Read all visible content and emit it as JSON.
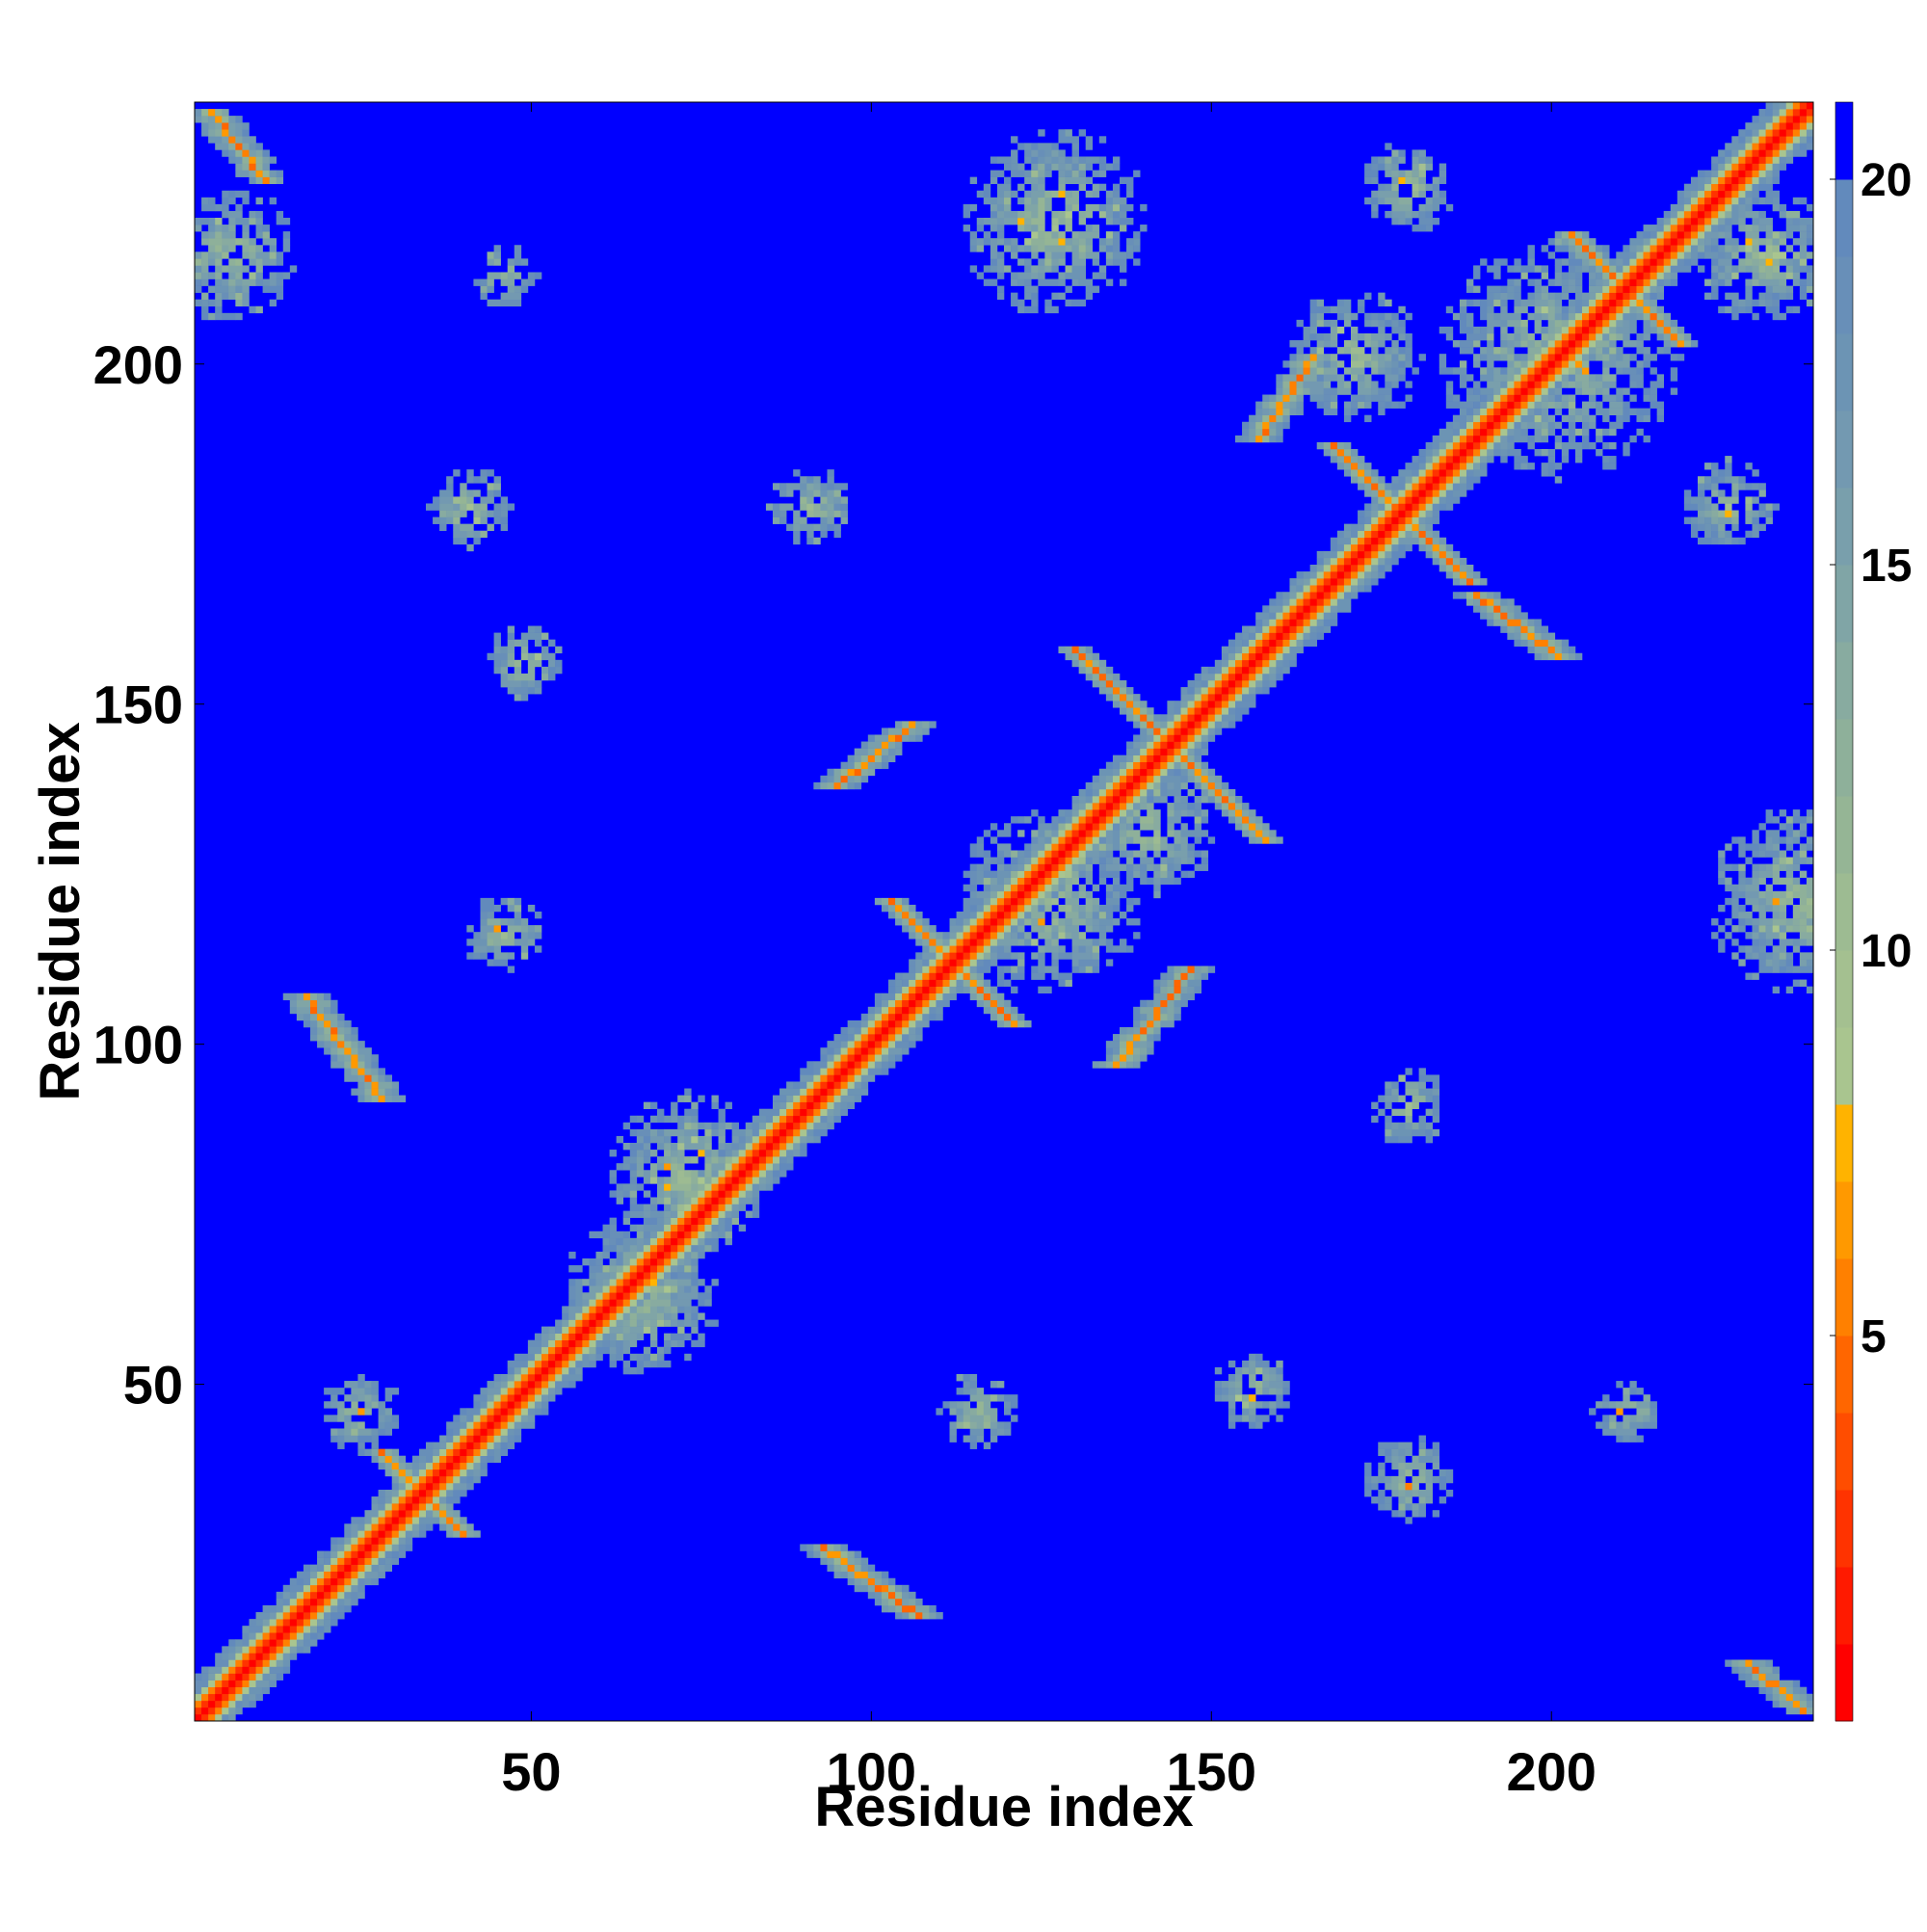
{
  "chart_data": {
    "type": "heatmap",
    "title": "",
    "xlabel": "Residue index",
    "ylabel": "Residue index",
    "n_residues": 238,
    "xlim": [
      1,
      238
    ],
    "ylim": [
      1,
      238
    ],
    "x_ticks": [
      50,
      100,
      150,
      200
    ],
    "y_ticks": [
      50,
      100,
      150,
      200
    ],
    "colorbar": {
      "range": [
        0,
        21
      ],
      "ticks": [
        5,
        10,
        15,
        20
      ],
      "levels": [
        {
          "max": 1,
          "color": "#ff0000"
        },
        {
          "max": 2,
          "color": "#ff1a00"
        },
        {
          "max": 3,
          "color": "#ff3300"
        },
        {
          "max": 4,
          "color": "#ff4d00"
        },
        {
          "max": 5,
          "color": "#ff6600"
        },
        {
          "max": 6,
          "color": "#ff8000"
        },
        {
          "max": 7,
          "color": "#ff9900"
        },
        {
          "max": 8,
          "color": "#ffb300"
        },
        {
          "max": 9,
          "color": "#a9c58f"
        },
        {
          "max": 10,
          "color": "#a4c090"
        },
        {
          "max": 11,
          "color": "#9dbb92"
        },
        {
          "max": 12,
          "color": "#95b595"
        },
        {
          "max": 13,
          "color": "#8eb09a"
        },
        {
          "max": 14,
          "color": "#88aba0"
        },
        {
          "max": 15,
          "color": "#80a5a6"
        },
        {
          "max": 16,
          "color": "#799fac"
        },
        {
          "max": 17,
          "color": "#7399b1"
        },
        {
          "max": 18,
          "color": "#6c94b4"
        },
        {
          "max": 19,
          "color": "#688fb8"
        },
        {
          "max": 20,
          "color": "#628abc"
        },
        {
          "max": 21,
          "color": "#0000ff"
        }
      ]
    },
    "background_value": 21,
    "contact_features": [
      {
        "kind": "diagonal_band",
        "from": 1,
        "to": 238
      },
      {
        "kind": "antiparallel",
        "center": [
          111,
          111
        ],
        "length": 9
      },
      {
        "kind": "antiparallel",
        "center": [
          143,
          143
        ],
        "length": 14
      },
      {
        "kind": "antiparallel",
        "center": [
          177,
          177
        ],
        "length": 10
      },
      {
        "kind": "antiparallel",
        "center": [
          210,
          210
        ],
        "length": 8
      },
      {
        "kind": "antiparallel",
        "center": [
          33,
          33
        ],
        "length": 6
      },
      {
        "kind": "strand_pair",
        "from": [
          92,
          25
        ],
        "to": [
          106,
          15
        ]
      },
      {
        "kind": "strand_pair",
        "from": [
          16,
          106
        ],
        "to": [
          27,
          91
        ]
      },
      {
        "kind": "strand_pair",
        "from": [
          135,
          96
        ],
        "to": [
          146,
          110
        ]
      },
      {
        "kind": "strand_pair",
        "from": [
          94,
          137
        ],
        "to": [
          105,
          146
        ]
      },
      {
        "kind": "strand_pair",
        "from": [
          2,
          236
        ],
        "to": [
          10,
          226
        ]
      },
      {
        "kind": "strand_pair",
        "from": [
          228,
          8
        ],
        "to": [
          236,
          1
        ]
      },
      {
        "kind": "strand_pair",
        "from": [
          188,
          165
        ],
        "to": [
          200,
          156
        ]
      },
      {
        "kind": "strand_pair",
        "from": [
          156,
          188
        ],
        "to": [
          164,
          200
        ]
      },
      {
        "kind": "patch",
        "center": [
          126,
          220
        ],
        "radius": 14
      },
      {
        "kind": "patch",
        "center": [
          236,
          120
        ],
        "radius": 14
      },
      {
        "kind": "patch",
        "center": [
          225,
          178
        ],
        "radius": 7
      },
      {
        "kind": "patch",
        "center": [
          178,
          225
        ],
        "radius": 7
      },
      {
        "kind": "patch",
        "center": [
          40,
          178
        ],
        "radius": 6
      },
      {
        "kind": "patch",
        "center": [
          90,
          178
        ],
        "radius": 6
      },
      {
        "kind": "patch",
        "center": [
          178,
          90
        ],
        "radius": 6
      },
      {
        "kind": "patch",
        "center": [
          178,
          35
        ],
        "radius": 7
      },
      {
        "kind": "patch",
        "center": [
          155,
          48
        ],
        "radius": 6
      },
      {
        "kind": "patch",
        "center": [
          48,
          155
        ],
        "radius": 6
      },
      {
        "kind": "patch",
        "center": [
          45,
          212
        ],
        "radius": 5
      },
      {
        "kind": "patch",
        "center": [
          24,
          45
        ],
        "radius": 6
      },
      {
        "kind": "patch",
        "center": [
          210,
          45
        ],
        "radius": 5
      },
      {
        "kind": "patch",
        "center": [
          115,
          45
        ],
        "radius": 6
      },
      {
        "kind": "patch",
        "center": [
          45,
          115
        ],
        "radius": 6
      },
      {
        "kind": "patch",
        "center": [
          65,
          62
        ],
        "radius": 12
      },
      {
        "kind": "patch",
        "center": [
          72,
          80
        ],
        "radius": 12
      },
      {
        "kind": "patch",
        "center": [
          125,
          120
        ],
        "radius": 14
      },
      {
        "kind": "patch",
        "center": [
          140,
          130
        ],
        "radius": 10
      },
      {
        "kind": "patch",
        "center": [
          200,
          200
        ],
        "radius": 18
      },
      {
        "kind": "patch",
        "center": [
          230,
          215
        ],
        "radius": 10
      },
      {
        "kind": "patch",
        "center": [
          170,
          200
        ],
        "radius": 10
      },
      {
        "kind": "patch",
        "center": [
          5,
          215
        ],
        "radius": 10
      }
    ]
  }
}
